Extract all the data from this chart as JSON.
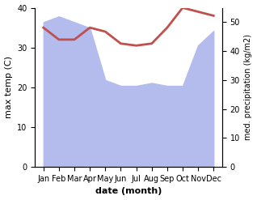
{
  "months": [
    "Jan",
    "Feb",
    "Mar",
    "Apr",
    "May",
    "Jun",
    "Jul",
    "Aug",
    "Sep",
    "Oct",
    "Nov",
    "Dec"
  ],
  "max_temp": [
    35,
    32,
    32,
    35,
    34,
    31,
    30.5,
    31,
    35,
    40,
    39,
    38
  ],
  "precipitation": [
    50,
    52,
    50,
    48,
    30,
    28,
    28,
    29,
    28,
    28,
    42,
    47
  ],
  "temp_color": "#c0504d",
  "precip_fill_color": "#b3bcec",
  "temp_ylim": [
    0,
    40
  ],
  "precip_ylim": [
    0,
    55
  ],
  "temp_yticks": [
    0,
    10,
    20,
    30,
    40
  ],
  "precip_yticks": [
    0,
    10,
    20,
    30,
    40,
    50
  ],
  "xlabel": "date (month)",
  "ylabel_left": "max temp (C)",
  "ylabel_right": "med. precipitation (kg/m2)",
  "fig_width": 3.18,
  "fig_height": 2.47,
  "dpi": 100
}
